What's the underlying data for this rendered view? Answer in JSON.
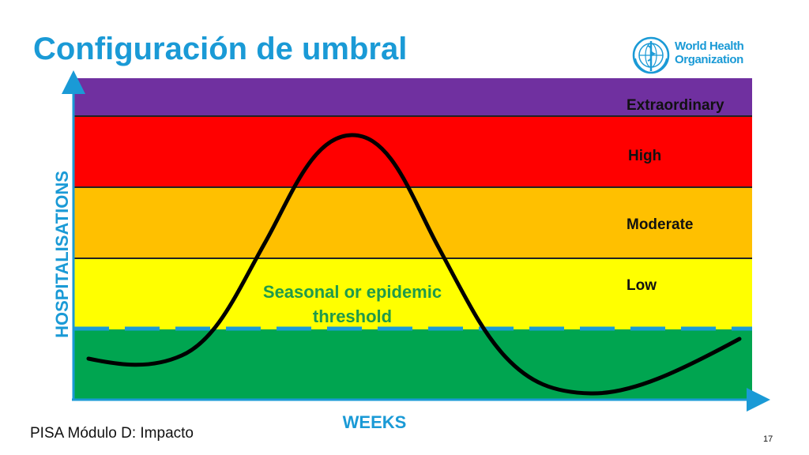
{
  "slide": {
    "title": "Configuración de umbral",
    "footer": "PISA Módulo D: Impacto",
    "page_number": "17"
  },
  "logo": {
    "line1": "World Health",
    "line2": "Organization",
    "color": "#1a9ad6"
  },
  "diagram": {
    "x_axis_label": "WEEKS",
    "y_axis_label": "HOSPITALISATIONS",
    "threshold_label_line1": "Seasonal or epidemic",
    "threshold_label_line2": "threshold",
    "bands": [
      {
        "label": "Extraordinary",
        "color": "#7030a0"
      },
      {
        "label": "High",
        "color": "#ff0000"
      },
      {
        "label": "Moderate",
        "color": "#ffc000"
      },
      {
        "label": "Low",
        "color": "#ffff00"
      },
      {
        "label": "",
        "color": "#00a550"
      }
    ],
    "threshold_line_color": "#1a9ad6",
    "curve_color": "#000000",
    "axis_color": "#1a9ad6"
  }
}
